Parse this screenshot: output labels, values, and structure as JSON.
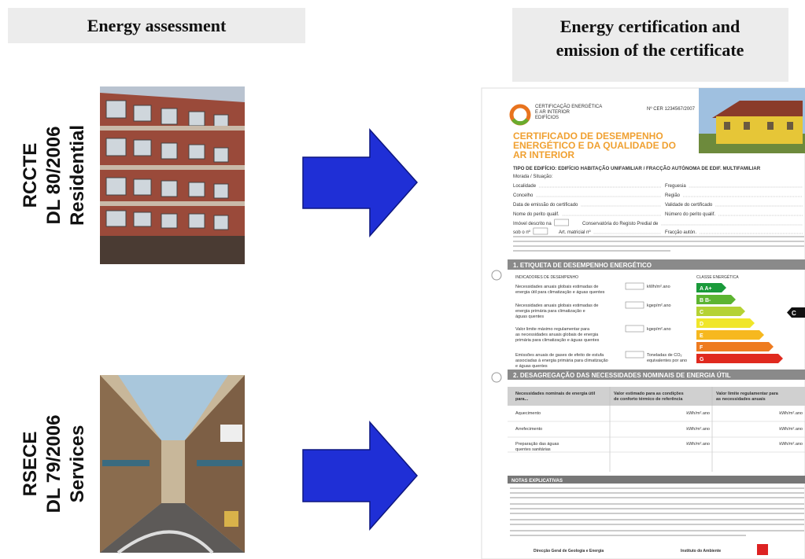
{
  "left_header": "Energy assessment",
  "right_header": [
    "Energy certification and",
    "emission of the certificate"
  ],
  "rows": [
    {
      "lines": [
        "RCCTE",
        "DL 80/2006",
        "Residential"
      ]
    },
    {
      "lines": [
        "RSECE",
        "DL 79/2006",
        "Services"
      ]
    }
  ],
  "certificate": {
    "logo_text": [
      "CERTIFICAÇÃO ENERGÉTICA",
      "E AR INTERIOR",
      "EDIFÍCIOS"
    ],
    "number": "Nº CER 1234567/2007",
    "title": [
      "CERTIFICADO DE DESEMPENHO",
      "ENERGÉTICO E DA QUALIDADE DO",
      "AR INTERIOR"
    ],
    "building_type": "TIPO DE EDIFÍCIO: EDIFÍCIO HABITAÇÃO UNIFAMILIAR / FRACÇÃO AUTÓNOMA DE EDIF. MULTIFAMILIAR",
    "address": "Morada / Situação:",
    "fields": [
      "Localidade",
      "Freguesia",
      "Concelho",
      "Região",
      "Data de emissão do certificado",
      "Validade do certificado",
      "Nome do perito qualif.",
      "Número do perito qualif.",
      "Imóvel descrito na",
      "Conservatória do Registo Predial de",
      "sob o nº",
      "Art. matricial nº",
      "Fracção autón."
    ],
    "section1": "1. ETIQUETA DE DESEMPENHO ENERGÉTICO",
    "indicators_header": "INDICADORES DE DESEMPENHO",
    "class_header": "CLASSE ENERGÉTICA",
    "indicators": [
      {
        "lines": [
          "Necessidades anuais globais estimadas de",
          "energia útil para climatização e águas quentes"
        ],
        "unit": [
          "kWh/m².ano"
        ]
      },
      {
        "lines": [
          "Necessidades anuais globais estimadas de",
          "energia primária para climatização e",
          "águas quentes"
        ],
        "unit": [
          "kgep/m².ano"
        ]
      },
      {
        "lines": [
          "Valor limite máximo regulamentar para",
          "as necessidades anuais globais de energia",
          "primária para climatização e águas quentes"
        ],
        "unit": [
          "kgep/m².ano"
        ]
      },
      {
        "lines": [
          "Emissões anuais de gases de efeito de estufa",
          "associadas à energia primária para climatização",
          "e águas quentes"
        ],
        "unit": [
          "Toneladas de CO₂",
          "equivalentes por ano"
        ]
      }
    ],
    "classes": [
      "A  A+",
      "B  B-",
      "C",
      "D",
      "E",
      "F",
      "G"
    ],
    "rating": "C",
    "section2": "2. DESAGREGAÇÃO DAS NECESSIDADES NOMINAIS DE ENERGIA ÚTIL",
    "table_header": [
      [
        "Necessidades nominais de energia útil",
        "para..."
      ],
      [
        "Valor estimado para as condições",
        "de conforto térmico de referência"
      ],
      [
        "Valor limite regulamentar para",
        "as necessidades anuais"
      ]
    ],
    "table_rows": [
      {
        "lines": [
          "Aquecimento"
        ],
        "unit": "kWh/m².ano"
      },
      {
        "lines": [
          "Arrefecimento"
        ],
        "unit": "kWh/m².ano"
      },
      {
        "lines": [
          "Preparação das águas",
          "quentes sanitárias"
        ],
        "unit": "kWh/m².ano"
      }
    ],
    "notes_header": "NOTAS EXPLICATIVAS",
    "footer": [
      "Direcção Geral de Geologia e Energia",
      "Instituto do Ambiente"
    ]
  }
}
